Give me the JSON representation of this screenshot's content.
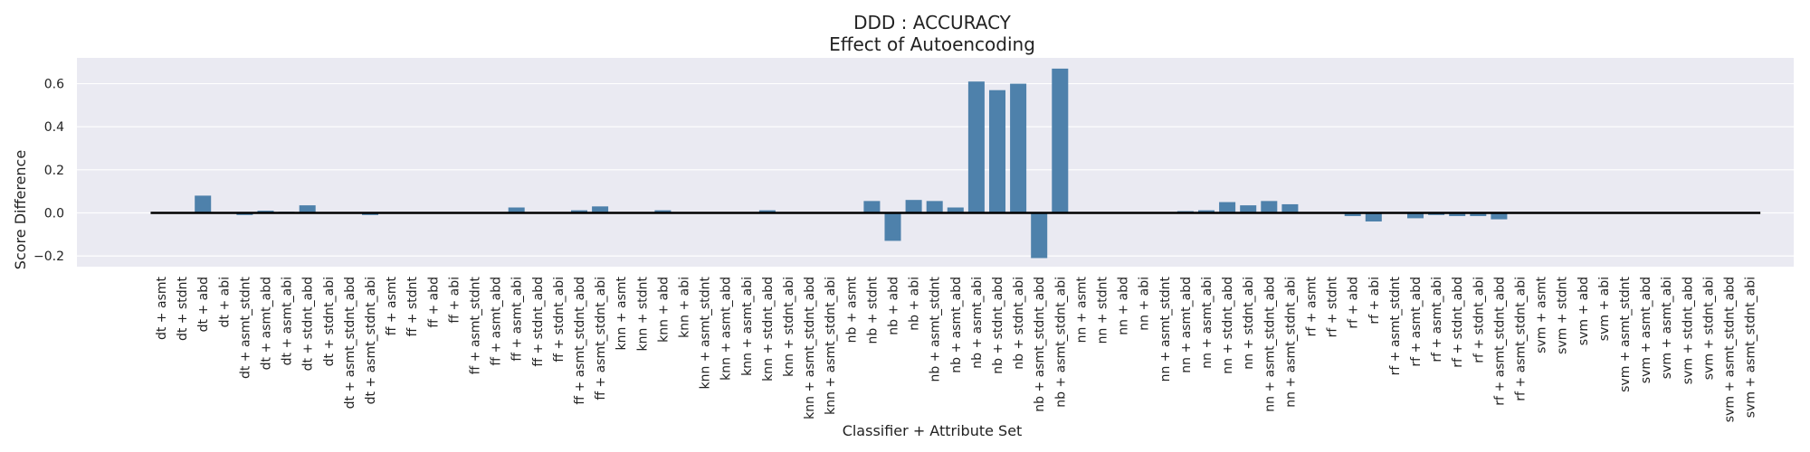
{
  "chart_data": {
    "type": "bar",
    "title": "DDD : ACCURACY",
    "subtitle": "Effect of Autoencoding",
    "xlabel": "Classifier + Attribute Set",
    "ylabel": "Score Difference",
    "ylim": [
      -0.25,
      0.72
    ],
    "yticks": [
      -0.2,
      0.0,
      0.2,
      0.4,
      0.6
    ],
    "grid": true,
    "colors": {
      "bar": "#4e81ab",
      "background": "#eaeaf2",
      "grid": "#ffffff",
      "zero_line": "#000000"
    },
    "categories": [
      "dt + asmt",
      "dt + stdnt",
      "dt + abd",
      "dt + abi",
      "dt + asmt_stdnt",
      "dt + asmt_abd",
      "dt + asmt_abi",
      "dt + stdnt_abd",
      "dt + stdnt_abi",
      "dt + asmt_stdnt_abd",
      "dt + asmt_stdnt_abi",
      "ff + asmt",
      "ff + stdnt",
      "ff + abd",
      "ff + abi",
      "ff + asmt_stdnt",
      "ff + asmt_abd",
      "ff + asmt_abi",
      "ff + stdnt_abd",
      "ff + stdnt_abi",
      "ff + asmt_stdnt_abd",
      "ff + asmt_stdnt_abi",
      "knn + asmt",
      "knn + stdnt",
      "knn + abd",
      "knn + abi",
      "knn + asmt_stdnt",
      "knn + asmt_abd",
      "knn + asmt_abi",
      "knn + stdnt_abd",
      "knn + stdnt_abi",
      "knn + asmt_stdnt_abd",
      "knn + asmt_stdnt_abi",
      "nb + asmt",
      "nb + stdnt",
      "nb + abd",
      "nb + abi",
      "nb + asmt_stdnt",
      "nb + asmt_abd",
      "nb + asmt_abi",
      "nb + stdnt_abd",
      "nb + stdnt_abi",
      "nb + asmt_stdnt_abd",
      "nb + asmt_stdnt_abi",
      "nn + asmt",
      "nn + stdnt",
      "nn + abd",
      "nn + abi",
      "nn + asmt_stdnt",
      "nn + asmt_abd",
      "nn + asmt_abi",
      "nn + stdnt_abd",
      "nn + stdnt_abi",
      "nn + asmt_stdnt_abd",
      "nn + asmt_stdnt_abi",
      "rf + asmt",
      "rf + stdnt",
      "rf + abd",
      "rf + abi",
      "rf + asmt_stdnt",
      "rf + asmt_abd",
      "rf + asmt_abi",
      "rf + stdnt_abd",
      "rf + stdnt_abi",
      "rf + asmt_stdnt_abd",
      "rf + asmt_stdnt_abi",
      "svm + asmt",
      "svm + stdnt",
      "svm + abd",
      "svm + abi",
      "svm + asmt_stdnt",
      "svm + asmt_abd",
      "svm + asmt_abi",
      "svm + stdnt_abd",
      "svm + stdnt_abi",
      "svm + asmt_stdnt_abd",
      "svm + asmt_stdnt_abi"
    ],
    "values": [
      0.0,
      0.0,
      0.08,
      0.0,
      -0.01,
      0.01,
      0.005,
      0.035,
      0.0,
      0.0,
      -0.01,
      0.0,
      0.0,
      0.0,
      0.0,
      0.0,
      0.0,
      0.025,
      0.0,
      0.0,
      0.012,
      0.03,
      0.0,
      0.0,
      0.012,
      0.0,
      0.0,
      0.0,
      0.0,
      0.012,
      0.0,
      0.0,
      0.0,
      0.0,
      0.055,
      -0.13,
      0.06,
      0.055,
      0.025,
      0.61,
      0.57,
      0.6,
      -0.21,
      0.67,
      0.0,
      0.0,
      0.0,
      0.0,
      0.0,
      0.008,
      0.012,
      0.05,
      0.035,
      0.055,
      0.04,
      0.0,
      0.0,
      -0.015,
      -0.04,
      0.0,
      -0.025,
      -0.01,
      -0.015,
      -0.015,
      -0.03,
      0.0,
      0.0,
      0.0,
      0.0,
      0.0,
      0.0,
      0.0,
      0.0,
      0.0,
      0.0,
      0.0,
      0.0
    ]
  }
}
